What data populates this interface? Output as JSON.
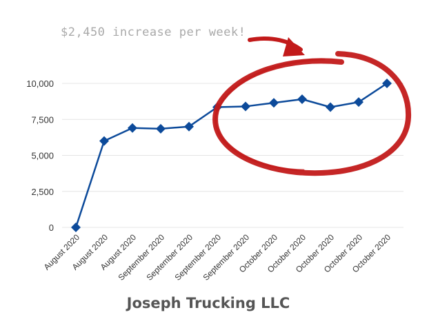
{
  "annotation": {
    "text": "$2,450 increase per week!",
    "color": "#a9a9a9"
  },
  "footer": {
    "company": "Joseph Trucking LLC"
  },
  "colors": {
    "line": "#0c4a9a",
    "circle": "#c21a1a",
    "grid": "#e4e4e4"
  },
  "chart_data": {
    "type": "line",
    "title": "",
    "xlabel": "",
    "ylabel": "",
    "categories": [
      "August 2020",
      "August 2020",
      "August 2020",
      "September 2020",
      "September 2020",
      "September 2020",
      "September 2020",
      "October 2020",
      "October 2020",
      "October 2020",
      "October 2020",
      "October 2020"
    ],
    "values": [
      0,
      6000,
      6900,
      6850,
      7000,
      8350,
      8400,
      8650,
      8900,
      8350,
      8700,
      10000
    ],
    "ylim": [
      0,
      10000
    ],
    "yticks": [
      {
        "value": 0,
        "label": "0"
      },
      {
        "value": 2500,
        "label": "2,500"
      },
      {
        "value": 5000,
        "label": "5,000"
      },
      {
        "value": 7500,
        "label": "7,500"
      },
      {
        "value": 10000,
        "label": "10,000"
      }
    ],
    "grid": true,
    "marker": "diamond"
  }
}
